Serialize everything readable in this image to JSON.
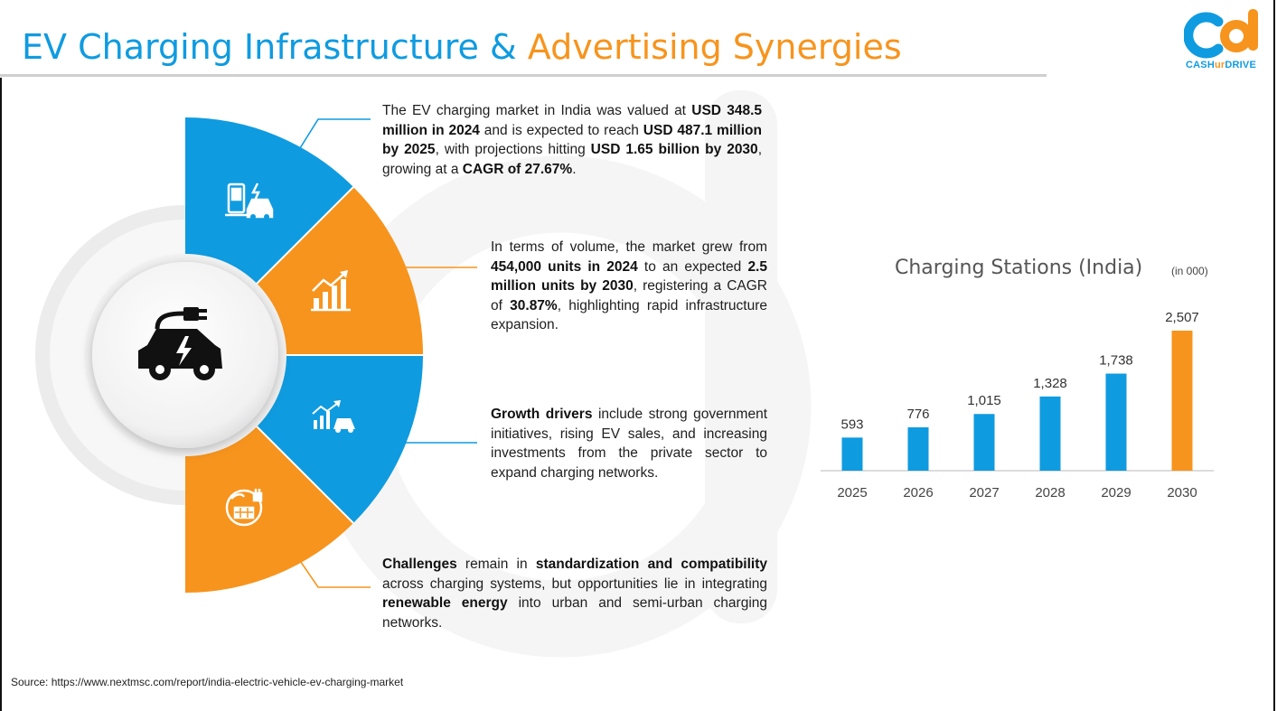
{
  "header": {
    "title_part1": "EV Charging Infrastructure &",
    "title_part2": "Advertising Synergies"
  },
  "logo": {
    "text_part1": "CASH",
    "text_part2": "ur",
    "text_part3": "DRIVE"
  },
  "colors": {
    "blue": "#0f9be0",
    "orange": "#f7941d",
    "dark": "#111111"
  },
  "infographic": {
    "center_icon": "ev-car-plug-icon",
    "segments": [
      {
        "icon": "charging-station-car-icon",
        "color": "blue"
      },
      {
        "icon": "growth-chart-icon",
        "color": "orange"
      },
      {
        "icon": "growth-drivers-car-icon",
        "color": "blue"
      },
      {
        "icon": "solar-plug-icon",
        "color": "orange"
      }
    ],
    "points": [
      {
        "parts": [
          {
            "t": "The EV charging market in India was valued at ",
            "b": false
          },
          {
            "t": "USD 348.5 million in 2024",
            "b": true
          },
          {
            "t": " and is expected to reach ",
            "b": false
          },
          {
            "t": "USD 487.1 million by 2025",
            "b": true
          },
          {
            "t": ", with projections hitting ",
            "b": false
          },
          {
            "t": "USD 1.65 billion by 2030",
            "b": true
          },
          {
            "t": ", growing at a ",
            "b": false
          },
          {
            "t": "CAGR of 27.67%",
            "b": true
          },
          {
            "t": ".",
            "b": false
          }
        ]
      },
      {
        "parts": [
          {
            "t": "In terms of volume, the market grew from ",
            "b": false
          },
          {
            "t": "454,000 units in 2024",
            "b": true
          },
          {
            "t": " to an expected ",
            "b": false
          },
          {
            "t": "2.5 million units by 2030",
            "b": true
          },
          {
            "t": ", registering a CAGR of ",
            "b": false
          },
          {
            "t": "30.87%",
            "b": true
          },
          {
            "t": ", highlighting rapid infrastructure expansion.",
            "b": false
          }
        ]
      },
      {
        "parts": [
          {
            "t": "Growth drivers",
            "b": true
          },
          {
            "t": " include strong government initiatives, rising EV sales, and increasing investments from the private sector to expand charging networks.",
            "b": false
          }
        ]
      },
      {
        "parts": [
          {
            "t": "Challenges",
            "b": true
          },
          {
            "t": " remain in ",
            "b": false
          },
          {
            "t": "standardization and compatibility",
            "b": true
          },
          {
            "t": " across charging systems, but opportunities lie in integrating ",
            "b": false
          },
          {
            "t": "renewable energy",
            "b": true
          },
          {
            "t": " into urban and semi-urban charging networks.",
            "b": false
          }
        ]
      }
    ]
  },
  "chart_data": {
    "type": "bar",
    "title": "Charging Stations (India)",
    "unit": "(in 000)",
    "categories": [
      "2025",
      "2026",
      "2027",
      "2028",
      "2029",
      "2030"
    ],
    "values": [
      593,
      776,
      1015,
      1328,
      1738,
      2507
    ],
    "value_labels": [
      "593",
      "776",
      "1,015",
      "1,328",
      "1,738",
      "2,507"
    ],
    "bar_colors": [
      "blue",
      "blue",
      "blue",
      "blue",
      "blue",
      "orange"
    ],
    "xlabel": "",
    "ylabel": "",
    "ylim": [
      0,
      2507
    ],
    "grid": false,
    "legend": "none"
  },
  "footer": {
    "source": "Source: https://www.nextmsc.com/report/india-electric-vehicle-ev-charging-market"
  }
}
